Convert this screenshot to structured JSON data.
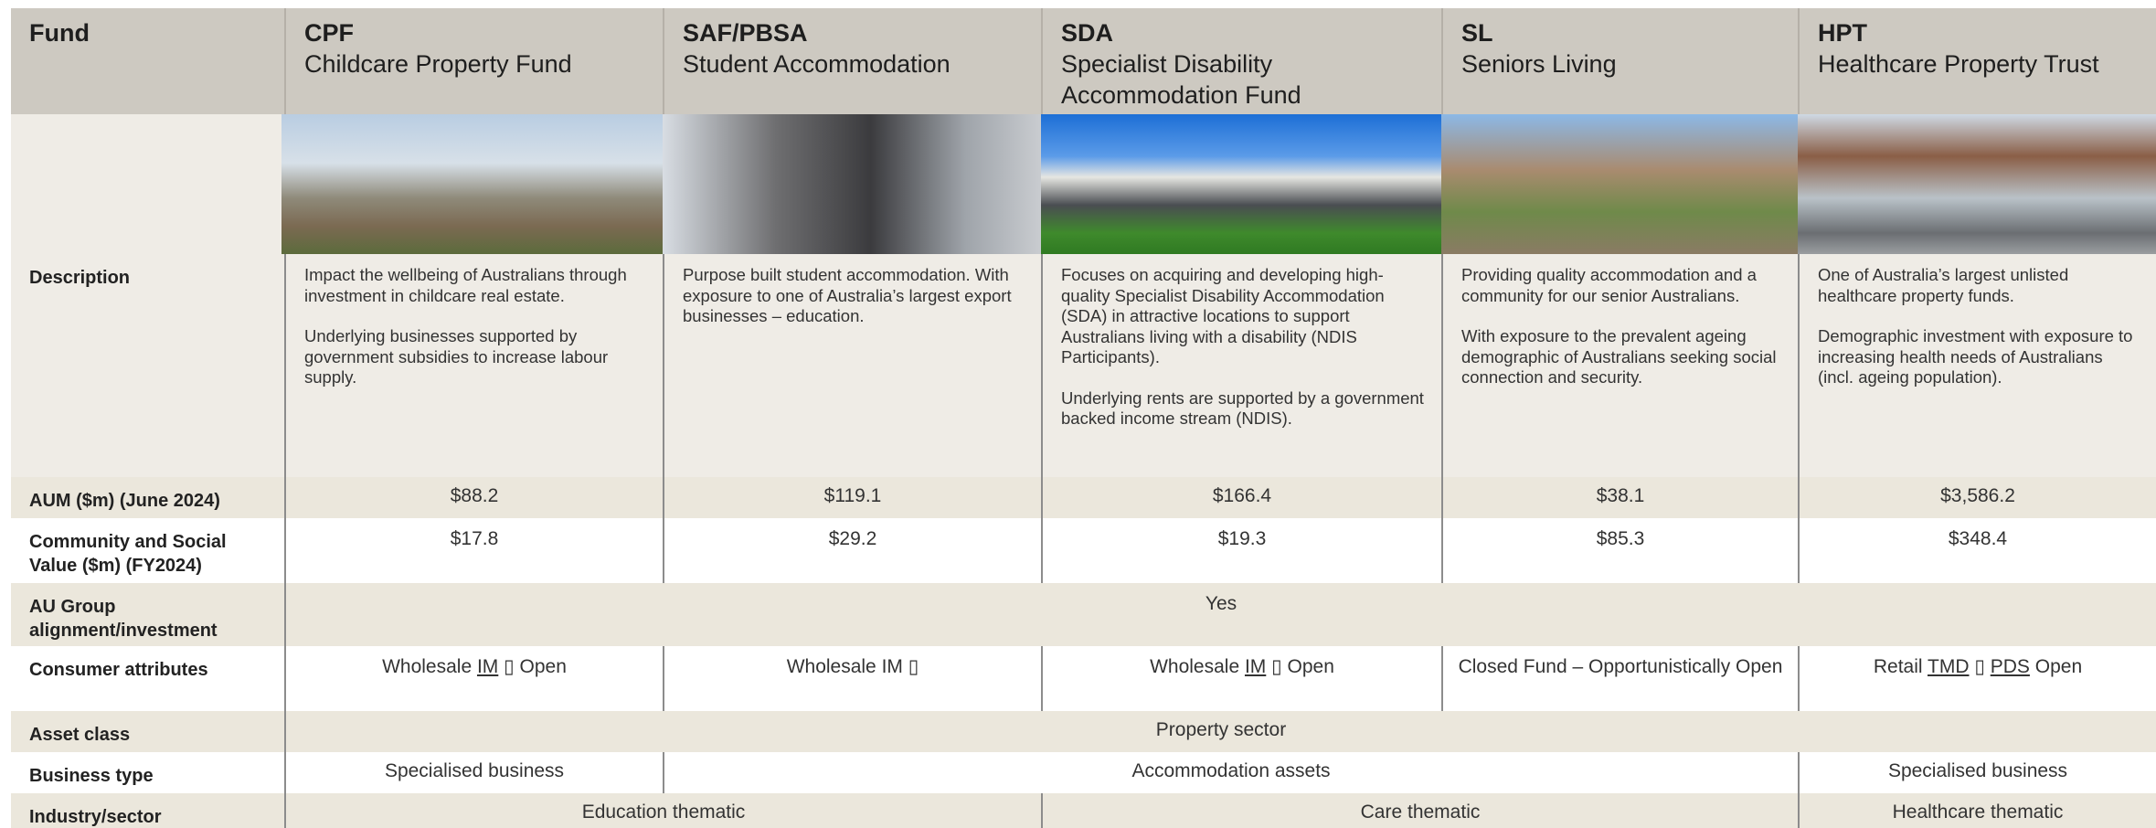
{
  "header": {
    "label": "Fund",
    "funds": [
      {
        "code": "CPF",
        "name": "Childcare Property Fund"
      },
      {
        "code": "SAF/PBSA",
        "name": "Student Accommodation"
      },
      {
        "code": "SDA",
        "name": "Specialist Disability Accommodation Fund"
      },
      {
        "code": "SL",
        "name": "Seniors Living"
      },
      {
        "code": "HPT",
        "name": "Healthcare Property Trust"
      }
    ]
  },
  "rows": [
    {
      "label": "Description",
      "cells": [
        {
          "paragraphs": [
            "Impact the wellbeing of Australians through investment in childcare real estate.",
            "Underlying businesses supported by government subsidies to increase labour supply."
          ]
        },
        {
          "paragraphs": [
            "Purpose built student accommodation. With exposure to one of Australia’s largest export businesses – education."
          ]
        },
        {
          "paragraphs": [
            "Focuses on acquiring and developing high-quality Specialist Disability Accommodation (SDA) in attractive locations to support Australians living with a disability (NDIS Participants).",
            "Underlying rents are supported by a government backed income stream (NDIS)."
          ]
        },
        {
          "paragraphs": [
            "Providing quality accommodation and a community for our senior Australians.",
            "With exposure to the prevalent ageing demographic of Australians seeking social connection and security."
          ]
        },
        {
          "paragraphs": [
            "One of Australia’s largest unlisted healthcare property funds.",
            "Demographic investment with exposure to increasing health needs of Australians (incl. ageing population)."
          ]
        }
      ]
    },
    {
      "label": "AUM ($m) (June 2024)",
      "cells": [
        {
          "text": "$88.2"
        },
        {
          "text": "$119.1"
        },
        {
          "text": "$166.4"
        },
        {
          "text": "$38.1"
        },
        {
          "text": "$3,586.2"
        }
      ]
    },
    {
      "label": "Community and Social Value ($m) (FY2024)",
      "cells": [
        {
          "text": "$17.8"
        },
        {
          "text": "$29.2"
        },
        {
          "text": "$19.3"
        },
        {
          "text": "$85.3"
        },
        {
          "text": "$348.4"
        }
      ]
    },
    {
      "label": "AU Group alignment/investment",
      "cells": [
        {
          "text": "Yes",
          "span": 5
        }
      ]
    },
    {
      "label": "Consumer attributes",
      "cells": [
        {
          "parts": [
            {
              "text": "Wholesale "
            },
            {
              "text": "IM",
              "underline": true
            },
            {
              "text": " ▯ Open"
            }
          ]
        },
        {
          "parts": [
            {
              "text": "Wholesale IM ▯"
            }
          ]
        },
        {
          "parts": [
            {
              "text": "Wholesale "
            },
            {
              "text": "IM",
              "underline": true
            },
            {
              "text": " ▯ Open"
            }
          ]
        },
        {
          "parts": [
            {
              "text": "Closed Fund – Opportunistically Open"
            }
          ]
        },
        {
          "parts": [
            {
              "text": "Retail "
            },
            {
              "text": "TMD",
              "underline": true
            },
            {
              "text": " ▯ "
            },
            {
              "text": "PDS",
              "underline": true
            },
            {
              "text": " Open"
            }
          ]
        }
      ]
    },
    {
      "label": "Asset class",
      "cells": [
        {
          "text": "Property sector",
          "span": 5
        }
      ]
    },
    {
      "label": "Business type",
      "cells": [
        {
          "text": "Specialised business"
        },
        {
          "text": "Accommodation assets",
          "span": 3
        },
        {
          "text": "Specialised business"
        }
      ]
    },
    {
      "label": "Industry/sector",
      "cells": [
        {
          "text": "Education thematic",
          "span": 2
        },
        {
          "text": "Care thematic",
          "span": 2
        },
        {
          "text": "Healthcare thematic"
        }
      ]
    }
  ]
}
